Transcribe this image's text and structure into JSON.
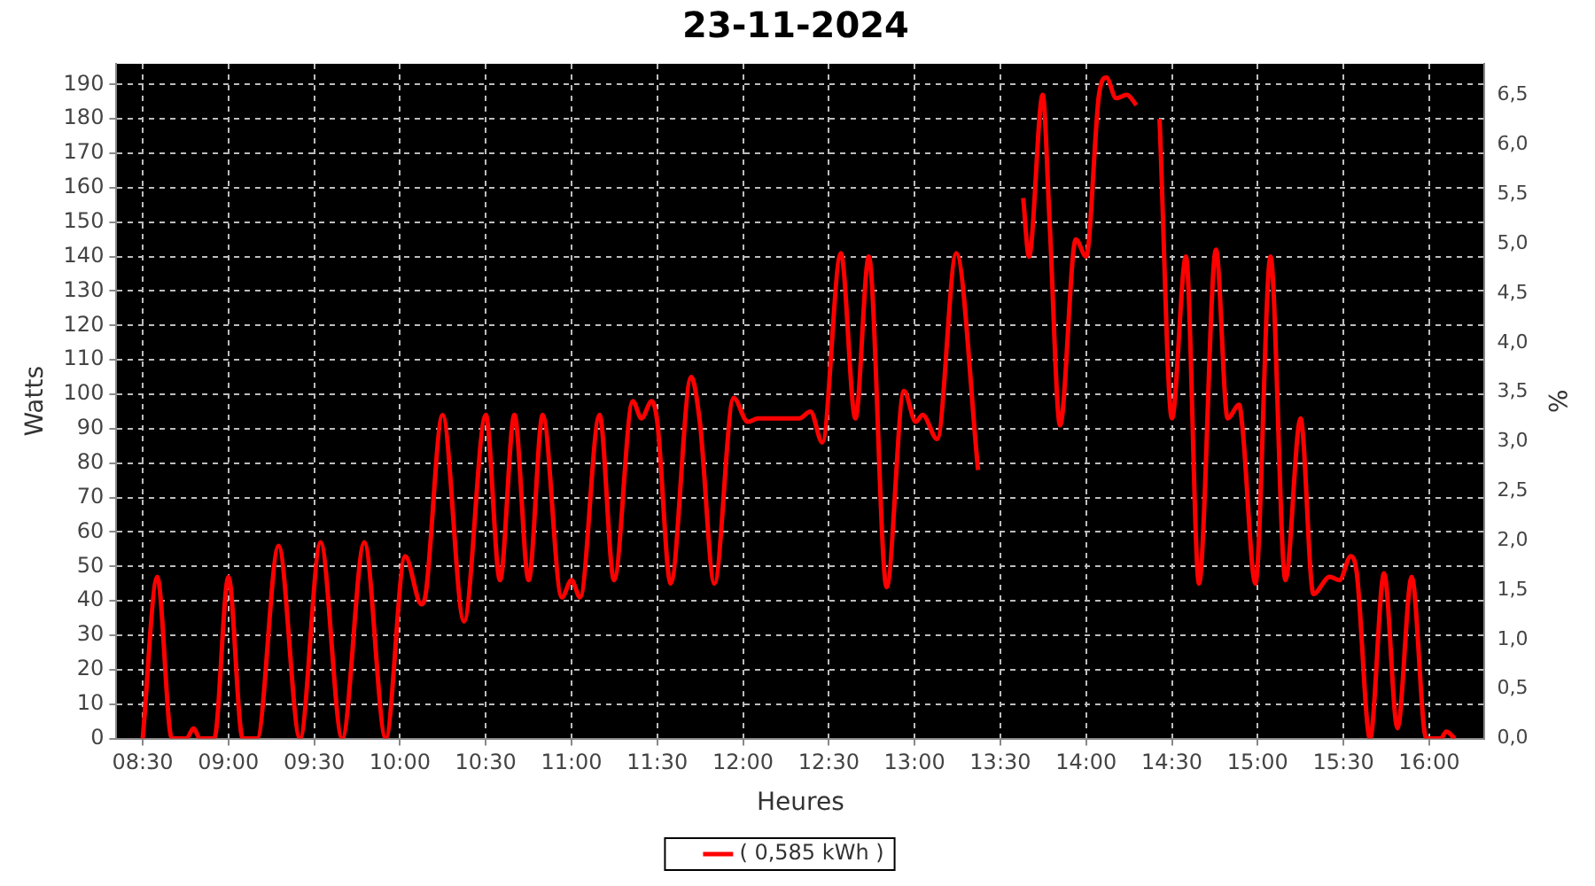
{
  "chart_data": {
    "type": "line",
    "title": "23-11-2024",
    "xlabel": "Heures",
    "ylabel": "Watts",
    "y2label": "%",
    "x": [
      8.5,
      8.585,
      8.67,
      8.755,
      8.797,
      8.833,
      8.917,
      9.0,
      9.083,
      9.167,
      9.292,
      9.417,
      9.537,
      9.663,
      9.792,
      9.917,
      10.03,
      10.125,
      10.15,
      10.248,
      10.373,
      10.5,
      10.583,
      10.667,
      10.75,
      10.832,
      10.943,
      11.0,
      11.05,
      11.163,
      11.248,
      11.357,
      11.408,
      11.467,
      11.5,
      11.578,
      11.697,
      11.748,
      11.833,
      11.945,
      12.027,
      12.088,
      12.327,
      12.393,
      12.462,
      12.57,
      12.655,
      12.733,
      12.837,
      12.938,
      13.007,
      13.047,
      13.132,
      13.243,
      13.37,
      13.49,
      13.55,
      13.633,
      13.667,
      13.747,
      13.787,
      13.848,
      13.94,
      14.0,
      14.075,
      14.118,
      14.175,
      14.237,
      14.293,
      14.385,
      14.428,
      14.5,
      14.582,
      14.658,
      14.757,
      14.825,
      14.892,
      14.912,
      14.987,
      15.075,
      15.162,
      15.25,
      15.325,
      15.42,
      15.477,
      15.543,
      15.578,
      15.655,
      15.737,
      15.815,
      15.898,
      15.983,
      16.067,
      16.1,
      16.15
    ],
    "series": [
      {
        "name": "( 0,585 kWh )",
        "color": "#ff0000",
        "values": [
          0,
          47,
          0,
          0,
          3,
          0,
          0,
          47,
          0,
          0,
          56,
          0,
          57,
          0,
          57,
          0,
          53,
          39,
          42,
          94,
          34,
          94,
          46,
          94,
          46,
          94,
          41,
          46,
          41,
          94,
          46,
          98,
          93,
          98,
          92,
          45,
          105,
          92,
          45,
          99,
          92,
          93,
          93,
          95,
          86,
          141,
          93,
          140,
          44,
          101,
          92,
          94,
          87,
          141,
          78,
          null,
          null,
          157,
          140,
          187,
          150,
          91,
          145,
          140,
          187,
          192,
          186,
          187,
          184,
          null,
          180,
          93,
          140,
          45,
          142,
          93,
          97,
          90,
          45,
          140,
          46,
          93,
          42,
          47,
          46,
          53,
          48,
          0,
          48,
          3,
          47,
          0,
          0,
          2,
          0
        ]
      }
    ],
    "xlim": [
      8.347,
      16.323
    ],
    "ylim": [
      0,
      196
    ],
    "y2lim": [
      0,
      6.82
    ],
    "xticks": [
      {
        "value": 8.5,
        "label": "08:30"
      },
      {
        "value": 9,
        "label": "09:00"
      },
      {
        "value": 9.5,
        "label": "09:30"
      },
      {
        "value": 10,
        "label": "10:00"
      },
      {
        "value": 10.5,
        "label": "10:30"
      },
      {
        "value": 11,
        "label": "11:00"
      },
      {
        "value": 11.5,
        "label": "11:30"
      },
      {
        "value": 12,
        "label": "12:00"
      },
      {
        "value": 12.5,
        "label": "12:30"
      },
      {
        "value": 13,
        "label": "13:00"
      },
      {
        "value": 13.5,
        "label": "13:30"
      },
      {
        "value": 14,
        "label": "14:00"
      },
      {
        "value": 14.5,
        "label": "14:30"
      },
      {
        "value": 15,
        "label": "15:00"
      },
      {
        "value": 15.5,
        "label": "15:30"
      },
      {
        "value": 16,
        "label": "16:00"
      }
    ],
    "yticks": [
      0,
      10,
      20,
      30,
      40,
      50,
      60,
      70,
      80,
      90,
      100,
      110,
      120,
      130,
      140,
      150,
      160,
      170,
      180,
      190
    ],
    "y2ticks": [
      {
        "value": 0,
        "label": "0,0"
      },
      {
        "value": 0.5,
        "label": "0,5"
      },
      {
        "value": 1,
        "label": "1,0"
      },
      {
        "value": 1.5,
        "label": "1,5"
      },
      {
        "value": 2,
        "label": "2,0"
      },
      {
        "value": 2.5,
        "label": "2,5"
      },
      {
        "value": 3,
        "label": "3,0"
      },
      {
        "value": 3.5,
        "label": "3,5"
      },
      {
        "value": 4,
        "label": "4,0"
      },
      {
        "value": 4.5,
        "label": "4,5"
      },
      {
        "value": 5,
        "label": "5,0"
      },
      {
        "value": 5.5,
        "label": "5,5"
      },
      {
        "value": 6,
        "label": "6,0"
      },
      {
        "value": 6.5,
        "label": "6,5"
      }
    ],
    "grid": true,
    "legend": "bottom",
    "marker": "none",
    "line_style": "solid"
  }
}
